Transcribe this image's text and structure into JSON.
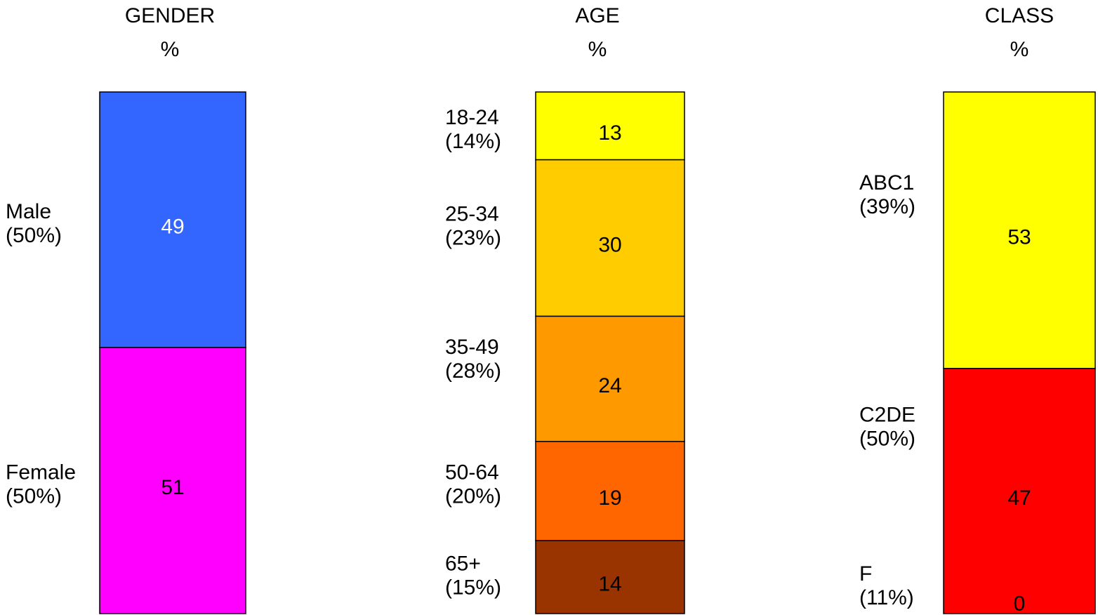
{
  "chart_data": [
    {
      "type": "bar",
      "stacked": true,
      "title": "GENDER",
      "subtitle": "%",
      "segments": [
        {
          "label": "Male",
          "share": "(50%)",
          "value": 49,
          "color": "#3366ff",
          "value_color": "#ffffff"
        },
        {
          "label": "Female",
          "share": "(50%)",
          "value": 51,
          "color": "#ff00ff",
          "value_color": "#000000"
        }
      ]
    },
    {
      "type": "bar",
      "stacked": true,
      "title": "AGE",
      "subtitle": "%",
      "segments": [
        {
          "label": "18-24",
          "share": "(14%)",
          "value": 13,
          "color": "#ffff00",
          "value_color": "#000000"
        },
        {
          "label": "25-34",
          "share": "(23%)",
          "value": 30,
          "color": "#ffcc00",
          "value_color": "#000000"
        },
        {
          "label": "35-49",
          "share": "(28%)",
          "value": 24,
          "color": "#ff9900",
          "value_color": "#000000"
        },
        {
          "label": "50-64",
          "share": "(20%)",
          "value": 19,
          "color": "#ff6600",
          "value_color": "#000000"
        },
        {
          "label": "65+",
          "share": "(15%)",
          "value": 14,
          "color": "#993300",
          "value_color": "#000000"
        }
      ]
    },
    {
      "type": "bar",
      "stacked": true,
      "title": "CLASS",
      "subtitle": "%",
      "segments": [
        {
          "label": "ABC1",
          "share": "(39%)",
          "value": 53,
          "color": "#ffff00",
          "value_color": "#000000"
        },
        {
          "label": "C2DE",
          "share": "(50%)",
          "value": 47,
          "color": "#ff0000",
          "value_color": "#000000"
        },
        {
          "label": "F",
          "share": "(11%)",
          "value": 0,
          "color": "#ff0000",
          "value_color": "#000000"
        }
      ]
    }
  ]
}
